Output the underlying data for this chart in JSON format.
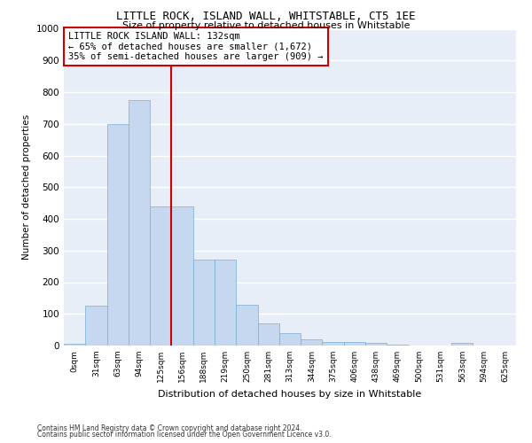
{
  "title": "LITTLE ROCK, ISLAND WALL, WHITSTABLE, CT5 1EE",
  "subtitle": "Size of property relative to detached houses in Whitstable",
  "xlabel": "Distribution of detached houses by size in Whitstable",
  "ylabel": "Number of detached properties",
  "bar_color": "#c5d8f0",
  "bar_edge_color": "#7aafd4",
  "background_color": "#e8eef8",
  "grid_color": "#ffffff",
  "vline_color": "#cc0000",
  "annotation_text": "LITTLE ROCK ISLAND WALL: 132sqm\n← 65% of detached houses are smaller (1,672)\n35% of semi-detached houses are larger (909) →",
  "annotation_box_color": "#ffffff",
  "annotation_box_edge_color": "#cc0000",
  "categories": [
    "0sqm",
    "31sqm",
    "63sqm",
    "94sqm",
    "125sqm",
    "156sqm",
    "188sqm",
    "219sqm",
    "250sqm",
    "281sqm",
    "313sqm",
    "344sqm",
    "375sqm",
    "406sqm",
    "438sqm",
    "469sqm",
    "500sqm",
    "531sqm",
    "563sqm",
    "594sqm",
    "625sqm"
  ],
  "values": [
    5,
    125,
    700,
    775,
    440,
    440,
    270,
    270,
    130,
    70,
    40,
    20,
    10,
    10,
    8,
    3,
    0,
    0,
    8,
    0,
    0
  ],
  "ylim": [
    0,
    1000
  ],
  "yticks": [
    0,
    100,
    200,
    300,
    400,
    500,
    600,
    700,
    800,
    900,
    1000
  ],
  "vline_index": 4,
  "footer_line1": "Contains HM Land Registry data © Crown copyright and database right 2024.",
  "footer_line2": "Contains public sector information licensed under the Open Government Licence v3.0."
}
